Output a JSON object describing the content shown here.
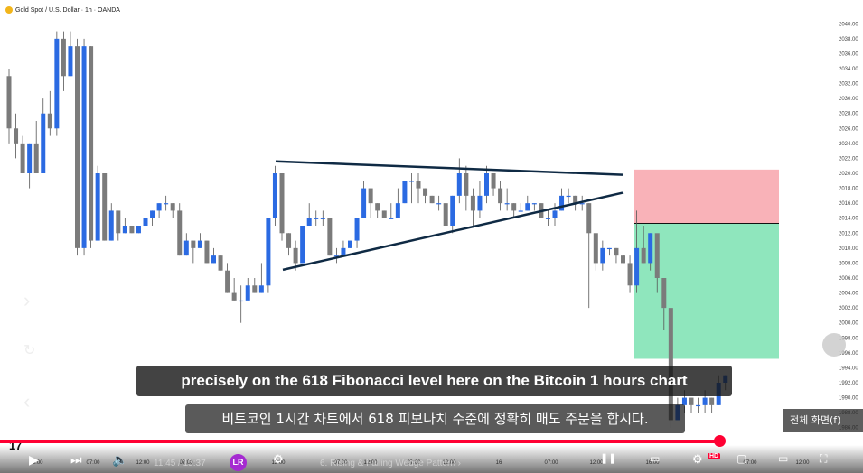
{
  "chart": {
    "symbol": "Gold Spot / U.S. Dollar · 1h · OANDA",
    "price_ticks": [
      "2040.00",
      "2038.00",
      "2036.00",
      "2034.00",
      "2032.00",
      "2030.00",
      "2028.00",
      "2026.00",
      "2024.00",
      "2022.00",
      "2020.00",
      "2018.00",
      "2016.00",
      "2014.00",
      "2012.00",
      "2010.00",
      "2008.00",
      "2006.00",
      "2004.00",
      "2002.00",
      "2000.00",
      "1998.00",
      "1996.00",
      "1994.00",
      "1992.00",
      "1990.00",
      "1988.00",
      "1986.00"
    ],
    "time_ticks": [
      "13:00",
      "07:00",
      "12:00",
      "07:00",
      "13",
      "12:00",
      "07:00",
      "12:00",
      "07:00",
      "12:00",
      "16",
      "07:00",
      "12:00",
      "16:00",
      "07:00",
      "12:00"
    ],
    "colors": {
      "up": "#2b6ae2",
      "down": "#7b7b7b",
      "wedge": "#0f2a44",
      "stop_zone": "#f9b2b8",
      "target_zone": "#8fe6bd",
      "progress": "#ff0033"
    }
  },
  "chart_data": {
    "type": "candlestick",
    "title": "Gold Spot / U.S. Dollar · 1h · OANDA",
    "ylim": [
      1985,
      2041
    ],
    "candles": [
      [
        2033,
        2026,
        2034,
        2024
      ],
      [
        2026,
        2024,
        2028,
        2022
      ],
      [
        2024,
        2020,
        2025,
        2020
      ],
      [
        2020,
        2024,
        2024,
        2018
      ],
      [
        2024,
        2020,
        2027,
        2020
      ],
      [
        2020,
        2028,
        2030,
        2020
      ],
      [
        2028,
        2026,
        2031,
        2025
      ],
      [
        2026,
        2038,
        2039,
        2025
      ],
      [
        2038,
        2033,
        2039,
        2031
      ],
      [
        2033,
        2037,
        2039,
        2033
      ],
      [
        2037,
        2010,
        2038,
        2009
      ],
      [
        2010,
        2037,
        2038,
        2009
      ],
      [
        2037,
        2011,
        2037,
        2010
      ],
      [
        2011,
        2020,
        2021,
        2011
      ],
      [
        2020,
        2011,
        2020,
        2011
      ],
      [
        2011,
        2015,
        2016,
        2011
      ],
      [
        2015,
        2012,
        2015,
        2011
      ],
      [
        2012,
        2013,
        2014,
        2012
      ],
      [
        2013,
        2012,
        2013,
        2012
      ],
      [
        2012,
        2013,
        2013,
        2012
      ],
      [
        2013,
        2014,
        2014,
        2013
      ],
      [
        2014,
        2015,
        2015,
        2013
      ],
      [
        2015,
        2016,
        2016,
        2014
      ],
      [
        2016,
        2016,
        2017,
        2015
      ],
      [
        2016,
        2015,
        2016,
        2014
      ],
      [
        2015,
        2009,
        2016,
        2009
      ],
      [
        2009,
        2011,
        2012,
        2009
      ],
      [
        2011,
        2010,
        2011,
        2008
      ],
      [
        2010,
        2011,
        2012,
        2010
      ],
      [
        2011,
        2008,
        2011,
        2008
      ],
      [
        2008,
        2009,
        2010,
        2008
      ],
      [
        2009,
        2007,
        2009,
        2007
      ],
      [
        2007,
        2004,
        2008,
        2004
      ],
      [
        2004,
        2003,
        2006,
        2003
      ],
      [
        2003,
        2003,
        2005,
        2000
      ],
      [
        2003,
        2005,
        2006,
        2004
      ],
      [
        2005,
        2004,
        2006,
        2004
      ],
      [
        2004,
        2005,
        2008,
        2004
      ],
      [
        2005,
        2014,
        2014,
        2004
      ],
      [
        2014,
        2020,
        2021,
        2013
      ],
      [
        2020,
        2012,
        2020,
        2011
      ],
      [
        2012,
        2010,
        2012,
        2009
      ],
      [
        2010,
        2008,
        2011,
        2007
      ],
      [
        2008,
        2013,
        2013,
        2008
      ],
      [
        2013,
        2014,
        2016,
        2013
      ],
      [
        2014,
        2014,
        2015,
        2013
      ],
      [
        2014,
        2014,
        2015,
        2013
      ],
      [
        2014,
        2009,
        2014,
        2009
      ],
      [
        2009,
        2009,
        2010,
        2008
      ],
      [
        2009,
        2010,
        2011,
        2009
      ],
      [
        2010,
        2011,
        2011,
        2010
      ],
      [
        2011,
        2014,
        2014,
        2010
      ],
      [
        2014,
        2018,
        2019,
        2014
      ],
      [
        2018,
        2016,
        2018,
        2014
      ],
      [
        2016,
        2015,
        2016,
        2014
      ],
      [
        2015,
        2014,
        2015,
        2014
      ],
      [
        2014,
        2014,
        2016,
        2014
      ],
      [
        2014,
        2016,
        2018,
        2014
      ],
      [
        2016,
        2019,
        2019,
        2016
      ],
      [
        2019,
        2019,
        2020,
        2016
      ],
      [
        2019,
        2018,
        2020,
        2016
      ],
      [
        2018,
        2017,
        2018,
        2016
      ],
      [
        2017,
        2016,
        2017,
        2016
      ],
      [
        2016,
        2016,
        2017,
        2015
      ],
      [
        2016,
        2013,
        2016,
        2013
      ],
      [
        2013,
        2017,
        2017,
        2012
      ],
      [
        2017,
        2020,
        2022,
        2016
      ],
      [
        2020,
        2017,
        2021,
        2015
      ],
      [
        2017,
        2015,
        2018,
        2013
      ],
      [
        2015,
        2017,
        2019,
        2014
      ],
      [
        2017,
        2020,
        2021,
        2016
      ],
      [
        2020,
        2018,
        2020,
        2017
      ],
      [
        2018,
        2016,
        2019,
        2015
      ],
      [
        2016,
        2016,
        2018,
        2015
      ],
      [
        2016,
        2015,
        2016,
        2014
      ],
      [
        2015,
        2015,
        2016,
        2015
      ],
      [
        2015,
        2016,
        2017,
        2015
      ],
      [
        2016,
        2016,
        2016,
        2015
      ],
      [
        2016,
        2014,
        2016,
        2014
      ],
      [
        2014,
        2014,
        2015,
        2013
      ],
      [
        2014,
        2015,
        2016,
        2013
      ],
      [
        2015,
        2017,
        2018,
        2015
      ],
      [
        2017,
        2017,
        2018,
        2016
      ],
      [
        2017,
        2016,
        2017,
        2015
      ],
      [
        2016,
        2016,
        2017,
        2015
      ],
      [
        2016,
        2012,
        2016,
        2002
      ],
      [
        2012,
        2008,
        2012,
        2007
      ],
      [
        2008,
        2010,
        2011,
        2007
      ],
      [
        2010,
        2010,
        2010,
        2009
      ],
      [
        2010,
        2009,
        2010,
        2008
      ],
      [
        2009,
        2008,
        2009,
        2008
      ],
      [
        2008,
        2005,
        2009,
        2004
      ],
      [
        2005,
        2010,
        2015,
        2004
      ],
      [
        2010,
        2008,
        2013,
        2008
      ],
      [
        2008,
        2012,
        2012,
        2007
      ],
      [
        2012,
        2006,
        2006,
        2004
      ],
      [
        2006,
        2002,
        2002,
        1999
      ],
      [
        2002,
        1987,
        2002,
        1986
      ],
      [
        1987,
        1989,
        1990,
        1987
      ],
      [
        1989,
        1990,
        1991,
        1988
      ],
      [
        1990,
        1989,
        1990,
        1988
      ],
      [
        1989,
        1989,
        1990,
        1988
      ],
      [
        1989,
        1990,
        1991,
        1988
      ],
      [
        1990,
        1989,
        1990,
        1988
      ],
      [
        1989,
        1992,
        1993,
        1989
      ],
      [
        1992,
        1993,
        1993,
        1991
      ]
    ],
    "annotations": [
      "wedge upper trendline",
      "wedge lower trendline",
      "stop zone (red)",
      "target zone (green)"
    ]
  },
  "overlay": {
    "caption_en": "precisely on the 618 Fibonacci level here on the Bitcoin 1 hours chart",
    "caption_ko": "비트코인 1시간 차트에서 618 피보나치 수준에 정확히 매도 주문을 합시다.",
    "fullscreen_tip": "전체 화면(f)",
    "time_display": "11:45 / 15:37",
    "chapter": "6. Rising & Falling Wedge Pattern ›",
    "hd_badge": "HD",
    "avatar_label": "LR",
    "tv_logo": "17"
  }
}
